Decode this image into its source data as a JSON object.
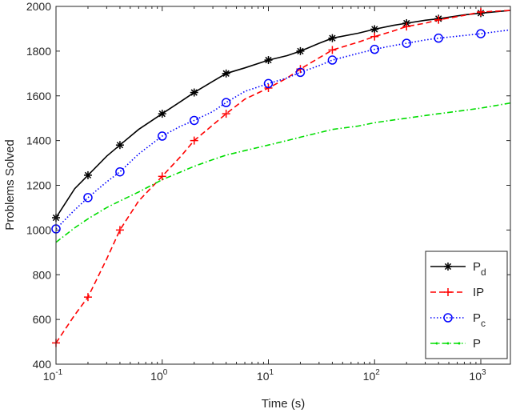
{
  "chart_data": {
    "type": "line",
    "title": "",
    "xlabel": "Time (s)",
    "ylabel": "Problems Solved",
    "xscale": "log",
    "xlim": [
      0.1,
      1900
    ],
    "ylim": [
      400,
      2000
    ],
    "yticks": [
      400,
      600,
      800,
      1000,
      1200,
      1400,
      1600,
      1800,
      2000
    ],
    "xticks": [
      {
        "value": 0.1,
        "base": "10",
        "exp": "-1"
      },
      {
        "value": 1,
        "base": "10",
        "exp": "0"
      },
      {
        "value": 10,
        "base": "10",
        "exp": "1"
      },
      {
        "value": 100,
        "base": "10",
        "exp": "2"
      },
      {
        "value": 1000,
        "base": "10",
        "exp": "3"
      }
    ],
    "legend_position": "bottom-right",
    "series": [
      {
        "name": "Pd",
        "label_main": "P",
        "label_sub": "d",
        "color": "#000000",
        "line": "solid",
        "marker": "asterisk",
        "x": [
          0.1,
          0.15,
          0.2,
          0.3,
          0.4,
          0.6,
          1,
          1.5,
          2,
          3,
          4,
          6,
          10,
          15,
          20,
          30,
          40,
          70,
          100,
          150,
          200,
          300,
          400,
          700,
          1000,
          1900
        ],
        "y": [
          1055,
          1185,
          1245,
          1330,
          1380,
          1450,
          1520,
          1575,
          1615,
          1665,
          1700,
          1725,
          1760,
          1780,
          1800,
          1835,
          1858,
          1880,
          1898,
          1915,
          1925,
          1938,
          1945,
          1962,
          1970,
          1982
        ],
        "marker_x": [
          0.1,
          0.2,
          0.4,
          1,
          2,
          4,
          10,
          20,
          40,
          100,
          200,
          400,
          1000
        ],
        "marker_y": [
          1055,
          1245,
          1380,
          1520,
          1615,
          1700,
          1760,
          1800,
          1858,
          1898,
          1925,
          1945,
          1970
        ]
      },
      {
        "name": "IP",
        "label_main": "IP",
        "label_sub": "",
        "color": "#ff0000",
        "line": "dashed",
        "marker": "plus",
        "x": [
          0.1,
          0.15,
          0.2,
          0.3,
          0.4,
          0.6,
          1,
          1.5,
          2,
          3,
          4,
          6,
          10,
          15,
          20,
          30,
          40,
          70,
          100,
          150,
          200,
          300,
          400,
          700,
          1000,
          1900
        ],
        "y": [
          495,
          620,
          700,
          870,
          1000,
          1130,
          1240,
          1330,
          1400,
          1470,
          1520,
          1585,
          1635,
          1680,
          1720,
          1770,
          1805,
          1840,
          1865,
          1890,
          1910,
          1925,
          1940,
          1960,
          1975,
          1982
        ],
        "marker_x": [
          0.1,
          0.2,
          0.4,
          1,
          2,
          4,
          10,
          20,
          40,
          100,
          200,
          400,
          1000
        ],
        "marker_y": [
          495,
          700,
          1000,
          1240,
          1400,
          1520,
          1635,
          1720,
          1805,
          1865,
          1910,
          1940,
          1975
        ]
      },
      {
        "name": "Pc",
        "label_main": "P",
        "label_sub": "c",
        "color": "#0000ff",
        "line": "dotted",
        "marker": "circle",
        "x": [
          0.1,
          0.15,
          0.2,
          0.3,
          0.4,
          0.6,
          1,
          1.5,
          2,
          3,
          4,
          6,
          10,
          15,
          20,
          30,
          40,
          70,
          100,
          150,
          200,
          300,
          400,
          700,
          1000,
          1900
        ],
        "y": [
          1005,
          1090,
          1145,
          1215,
          1260,
          1340,
          1420,
          1465,
          1490,
          1530,
          1570,
          1620,
          1655,
          1680,
          1705,
          1735,
          1760,
          1790,
          1808,
          1825,
          1835,
          1850,
          1858,
          1870,
          1878,
          1895
        ],
        "marker_x": [
          0.1,
          0.2,
          0.4,
          1,
          2,
          4,
          10,
          20,
          40,
          100,
          200,
          400,
          1000
        ],
        "marker_y": [
          1005,
          1145,
          1260,
          1420,
          1490,
          1570,
          1655,
          1705,
          1760,
          1808,
          1835,
          1858,
          1878
        ]
      },
      {
        "name": "P",
        "label_main": "P",
        "label_sub": "",
        "color": "#00dd00",
        "line": "dashdot",
        "marker": "point",
        "x": [
          0.1,
          0.15,
          0.2,
          0.3,
          0.4,
          0.6,
          1,
          1.5,
          2,
          3,
          4,
          6,
          10,
          15,
          20,
          30,
          40,
          70,
          100,
          150,
          200,
          300,
          400,
          700,
          1000,
          1900
        ],
        "y": [
          945,
          1010,
          1050,
          1100,
          1130,
          1170,
          1225,
          1260,
          1285,
          1315,
          1335,
          1355,
          1380,
          1400,
          1415,
          1435,
          1450,
          1465,
          1480,
          1492,
          1500,
          1512,
          1520,
          1535,
          1545,
          1568
        ],
        "marker_x": [],
        "marker_y": []
      }
    ]
  }
}
